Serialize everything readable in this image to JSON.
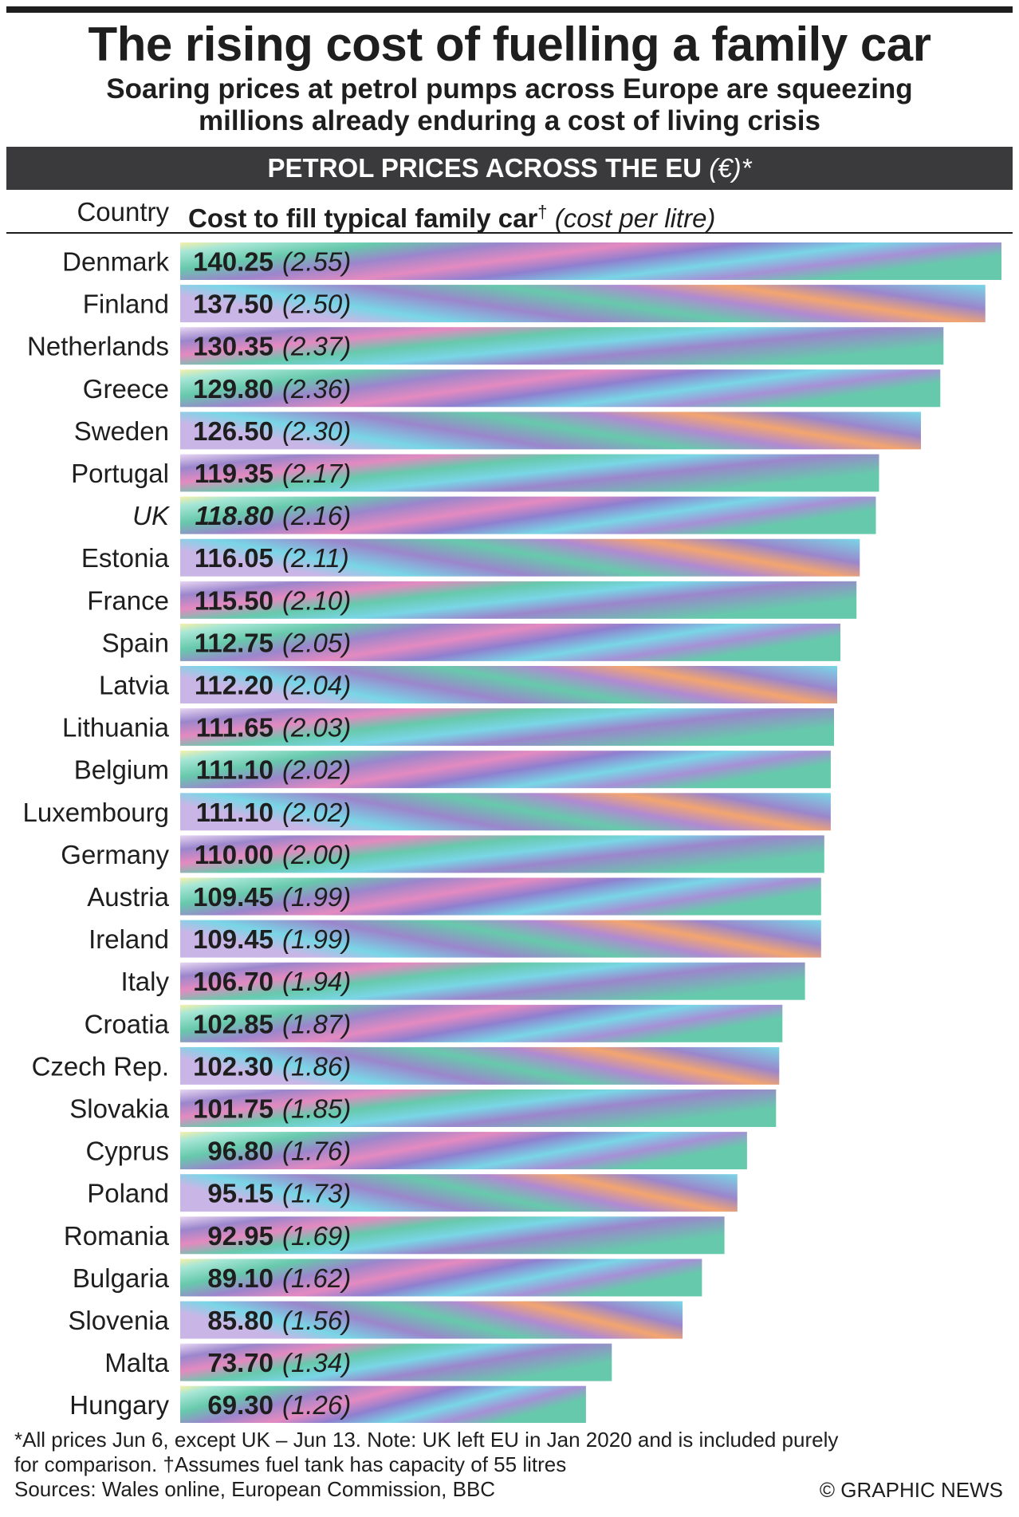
{
  "title": "The rising cost of fuelling a family car",
  "subtitle_line1": "Soaring prices at petrol pumps across Europe are squeezing",
  "subtitle_line2": "millions already enduring a cost of living crisis",
  "section_heading": "PETROL PRICES ACROSS THE EU",
  "section_heading_unit": "(€)*",
  "column_country": "Country",
  "column_cost": "Cost to fill typical family car",
  "column_cost_mark": "†",
  "column_cost_note": "(cost per litre)",
  "footnote_line1": "*All prices Jun 6, except UK – Jun 13. Note: UK left EU in Jan 2020 and is included purely",
  "footnote_line2": "for comparison. †Assumes fuel tank has capacity of 55 litres",
  "footnote_line3": "Sources: Wales online, European Commission, BBC",
  "credit": "© GRAPHIC NEWS",
  "colors": {
    "text": "#1e1e1e",
    "section_bar": "#3a3a3c",
    "teal": "#67c9ac",
    "purple": "#9b86cc",
    "pink": "#e48ac0",
    "cyan": "#79d6e6",
    "orange": "#f3a56f"
  },
  "chart_data": {
    "type": "bar",
    "orientation": "horizontal",
    "title": "PETROL PRICES ACROSS THE EU (€)*",
    "xlabel": "Cost to fill typical family car† (cost per litre)",
    "ylabel": "Country",
    "xlim": [
      0,
      140.25
    ],
    "grid": false,
    "categories": [
      "Denmark",
      "Finland",
      "Netherlands",
      "Greece",
      "Sweden",
      "Portugal",
      "UK",
      "Estonia",
      "France",
      "Spain",
      "Latvia",
      "Lithuania",
      "Belgium",
      "Luxembourg",
      "Germany",
      "Austria",
      "Ireland",
      "Italy",
      "Croatia",
      "Czech Rep.",
      "Slovakia",
      "Cyprus",
      "Poland",
      "Romania",
      "Bulgaria",
      "Slovenia",
      "Malta",
      "Hungary"
    ],
    "values": [
      "140.25",
      "137.50",
      "130.35",
      "129.80",
      "126.50",
      "119.35",
      "118.80",
      "116.05",
      "115.50",
      "112.75",
      "112.20",
      "111.65",
      "111.10",
      "111.10",
      "110.00",
      "109.45",
      "109.45",
      "106.70",
      "102.85",
      "102.30",
      "101.75",
      "96.80",
      "95.15",
      "92.95",
      "89.10",
      "85.80",
      "73.70",
      "69.30"
    ],
    "per_litre": [
      "(2.55)",
      "(2.50)",
      "(2.37)",
      "(2.36)",
      "(2.30)",
      "(2.17)",
      "(2.16)",
      "(2.11)",
      "(2.10)",
      "(2.05)",
      "(2.04)",
      "(2.03)",
      "(2.02)",
      "(2.02)",
      "(2.00)",
      "(1.99)",
      "(1.99)",
      "(1.94)",
      "(1.87)",
      "(1.86)",
      "(1.85)",
      "(1.76)",
      "(1.73)",
      "(1.69)",
      "(1.62)",
      "(1.56)",
      "(1.34)",
      "(1.26)"
    ],
    "italic_categories": [
      "UK"
    ]
  }
}
